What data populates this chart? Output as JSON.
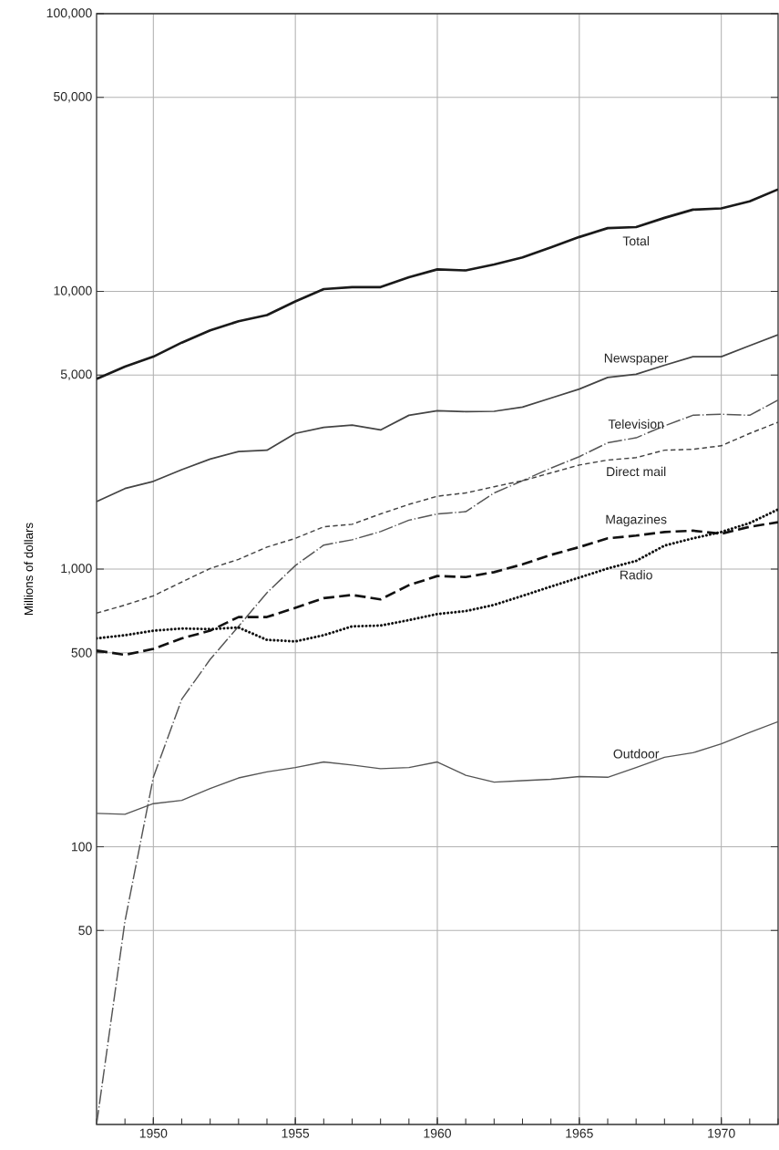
{
  "chart_data": {
    "type": "line",
    "ylabel": "Millions of dollars",
    "log": "y",
    "grid": true,
    "x": [
      1948,
      1949,
      1950,
      1951,
      1952,
      1953,
      1954,
      1955,
      1956,
      1957,
      1958,
      1959,
      1960,
      1961,
      1962,
      1963,
      1964,
      1965,
      1966,
      1967,
      1968,
      1969,
      1970,
      1971,
      1972
    ],
    "xlim": [
      1948,
      1972
    ],
    "xticks": [
      1950,
      1955,
      1960,
      1965,
      1970
    ],
    "ylim": [
      10,
      100000
    ],
    "yticks": [
      {
        "value": 50,
        "label": "50"
      },
      {
        "value": 100,
        "label": "100"
      },
      {
        "value": 500,
        "label": "500"
      },
      {
        "value": 1000,
        "label": "1,000"
      },
      {
        "value": 5000,
        "label": "5,000"
      },
      {
        "value": 10000,
        "label": "10,000"
      },
      {
        "value": 50000,
        "label": "50,000"
      },
      {
        "value": 100000,
        "label": "100,000"
      }
    ],
    "series": [
      {
        "name": "Total",
        "color": "#1a1a1a",
        "line_style": "solid",
        "values": [
          4840,
          5360,
          5820,
          6540,
          7240,
          7810,
          8220,
          9200,
          10190,
          10360,
          10360,
          11240,
          12000,
          11900,
          12500,
          13250,
          14400,
          15700,
          16900,
          17050,
          18400,
          19700,
          19900,
          21100,
          23300
        ]
      },
      {
        "name": "Newspaper",
        "color": "#444444",
        "line_style": "solid",
        "values": [
          1750,
          1950,
          2070,
          2280,
          2490,
          2650,
          2680,
          3080,
          3240,
          3300,
          3170,
          3580,
          3720,
          3690,
          3700,
          3830,
          4130,
          4450,
          4900,
          5030,
          5420,
          5820,
          5820,
          6380,
          6980
        ]
      },
      {
        "name": "Television",
        "color": "#555555",
        "line_style": "dashdot",
        "values": [
          10,
          54,
          178,
          340,
          473,
          622,
          822,
          1030,
          1220,
          1275,
          1365,
          1500,
          1580,
          1610,
          1880,
          2080,
          2310,
          2540,
          2850,
          2970,
          3280,
          3580,
          3610,
          3580,
          4060
        ]
      },
      {
        "name": "Direct mail",
        "color": "#444444",
        "line_style": "dashed",
        "values": [
          694,
          742,
          801,
          898,
          1005,
          1084,
          1200,
          1290,
          1420,
          1450,
          1580,
          1710,
          1830,
          1880,
          1980,
          2080,
          2220,
          2370,
          2470,
          2520,
          2680,
          2700,
          2780,
          3080,
          3380
        ]
      },
      {
        "name": "Magazines",
        "color": "#111111",
        "line_style": "dashed",
        "values": [
          509,
          491,
          516,
          563,
          600,
          672,
          672,
          725,
          786,
          807,
          778,
          875,
          944,
          936,
          975,
          1040,
          1125,
          1200,
          1290,
          1320,
          1360,
          1375,
          1340,
          1420,
          1475
        ]
      },
      {
        "name": "Radio",
        "color": "#111111",
        "line_style": "dotted",
        "values": [
          563,
          578,
          600,
          611,
          608,
          616,
          556,
          549,
          578,
          622,
          626,
          655,
          689,
          706,
          743,
          801,
          865,
          932,
          1005,
          1070,
          1215,
          1290,
          1360,
          1465,
          1640
        ]
      },
      {
        "name": "Outdoor",
        "color": "#555555",
        "line_style": "solid",
        "values": [
          132,
          131,
          143,
          147,
          162,
          177,
          186,
          193,
          202,
          197,
          191,
          193,
          202,
          181,
          171,
          173,
          175,
          179,
          178,
          193,
          210,
          218,
          235,
          258,
          282
        ]
      }
    ]
  }
}
